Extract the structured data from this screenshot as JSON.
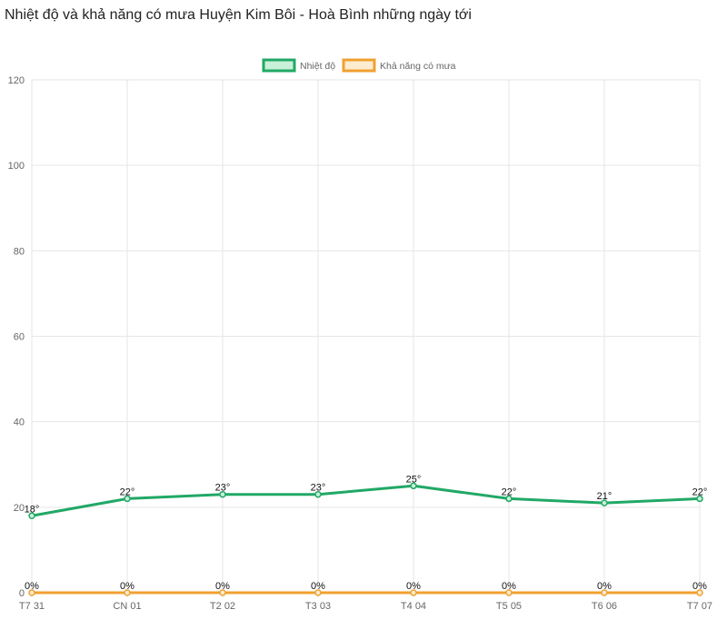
{
  "title": "Nhiệt độ và khả năng có mưa Huyện Kim Bôi - Hoà Bình những ngày tới",
  "colors": {
    "temperature_line": "#21a866",
    "temperature_fill": "#c9f0d8",
    "rain_line": "#f0a030",
    "rain_fill": "#fdeccf",
    "grid": "#e6e6e6",
    "tick_text": "#666666",
    "data_label": "#111111"
  },
  "chart_data": {
    "type": "line",
    "categories": [
      "T7 31",
      "CN 01",
      "T2 02",
      "T3 03",
      "T4 04",
      "T5 05",
      "T6 06",
      "T7 07"
    ],
    "ylim": [
      0,
      120
    ],
    "yticks": [
      0,
      20,
      40,
      60,
      80,
      100,
      120
    ],
    "grid": true,
    "legend_position": "top-center",
    "series": [
      {
        "name": "Nhiệt độ",
        "values": [
          18,
          22,
          23,
          23,
          25,
          22,
          21,
          22
        ],
        "labels": [
          "18°",
          "22°",
          "23°",
          "23°",
          "25°",
          "22°",
          "21°",
          "22°"
        ]
      },
      {
        "name": "Khả năng có mưa",
        "values": [
          0,
          0,
          0,
          0,
          0,
          0,
          0,
          0
        ],
        "labels": [
          "0%",
          "0%",
          "0%",
          "0%",
          "0%",
          "0%",
          "0%",
          "0%"
        ]
      }
    ]
  }
}
